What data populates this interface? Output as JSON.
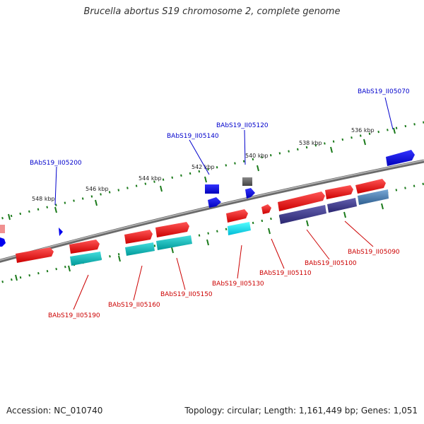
{
  "title": "Brucella abortus S19 chromosome 2, complete genome",
  "footer": {
    "accession": "Accession: NC_010740",
    "summary": "Topology: circular; Length: 1,161,449 bp; Genes: 1,051"
  },
  "ticks": [
    "536 kbp",
    "538 kbp",
    "540 kbp",
    "542 kbp",
    "544 kbp",
    "546 kbp",
    "548 kbp"
  ],
  "gene_labels": [
    "BAbS19_II05070",
    "BAbS19_II05120",
    "BAbS19_II05140",
    "BAbS19_II05200",
    "BAbS19_II05090",
    "BAbS19_II05100",
    "BAbS19_II05110",
    "BAbS19_II05130",
    "BAbS19_II05150",
    "BAbS19_II05160",
    "BAbS19_II05190"
  ],
  "colors": {
    "forward_label": "#0000cc",
    "reverse_label": "#cc0000",
    "gene_forward": "#ff0000",
    "gene_other": "#0000ff",
    "cds_teal": "#00b3b3",
    "cds_purple": "#3e3a8f",
    "cds_steel": "#4a7fb0",
    "cds_cyan": "#00e5ff",
    "backbone": "#7a7a7a",
    "tick": "#1a7a1a"
  }
}
